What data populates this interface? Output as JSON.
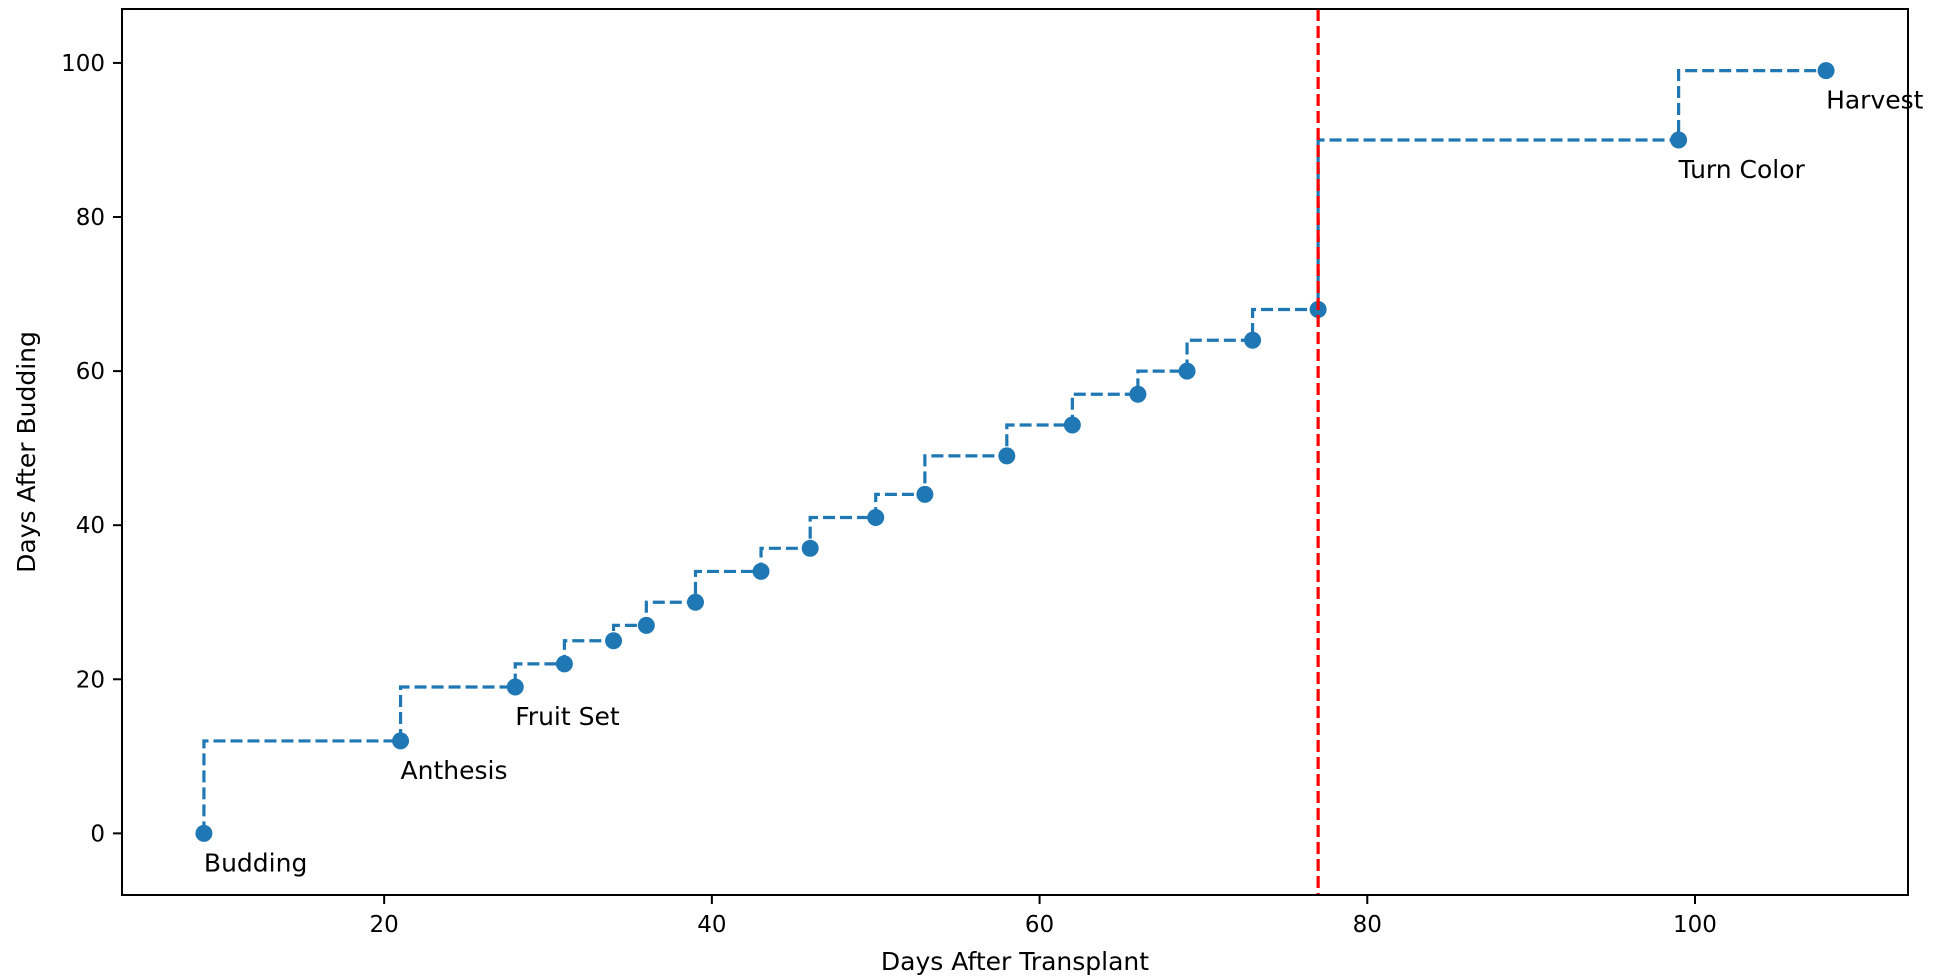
{
  "chart_data": {
    "type": "line",
    "title": "",
    "xlabel": "Days After Transplant",
    "ylabel": "Days After Budding",
    "xlim": [
      4,
      113
    ],
    "ylim": [
      -8,
      107
    ],
    "x_ticks": [
      20,
      40,
      60,
      80,
      100
    ],
    "y_ticks": [
      0,
      20,
      40,
      60,
      80,
      100
    ],
    "grid": false,
    "legend": "none",
    "series": [
      {
        "step": "post",
        "line_style": "dashed",
        "marker": "circle",
        "color": "#1f77b4",
        "x": [
          9,
          21,
          28,
          31,
          34,
          36,
          39,
          43,
          46,
          50,
          53,
          58,
          62,
          66,
          69,
          73,
          77,
          99,
          108
        ],
        "y": [
          0,
          12,
          19,
          22,
          25,
          27,
          30,
          34,
          37,
          41,
          44,
          49,
          53,
          57,
          60,
          64,
          68,
          90,
          99
        ]
      }
    ],
    "vertical_line": {
      "x": 77,
      "color": "#ff0000",
      "line_style": "dashed"
    },
    "annotations": [
      {
        "text": "Budding",
        "x": 9,
        "y": 0
      },
      {
        "text": "Anthesis",
        "x": 21,
        "y": 12
      },
      {
        "text": "Fruit Set",
        "x": 28,
        "y": 19
      },
      {
        "text": "Turn Color",
        "x": 99,
        "y": 90
      },
      {
        "text": "Harvest",
        "x": 108,
        "y": 99
      }
    ]
  }
}
